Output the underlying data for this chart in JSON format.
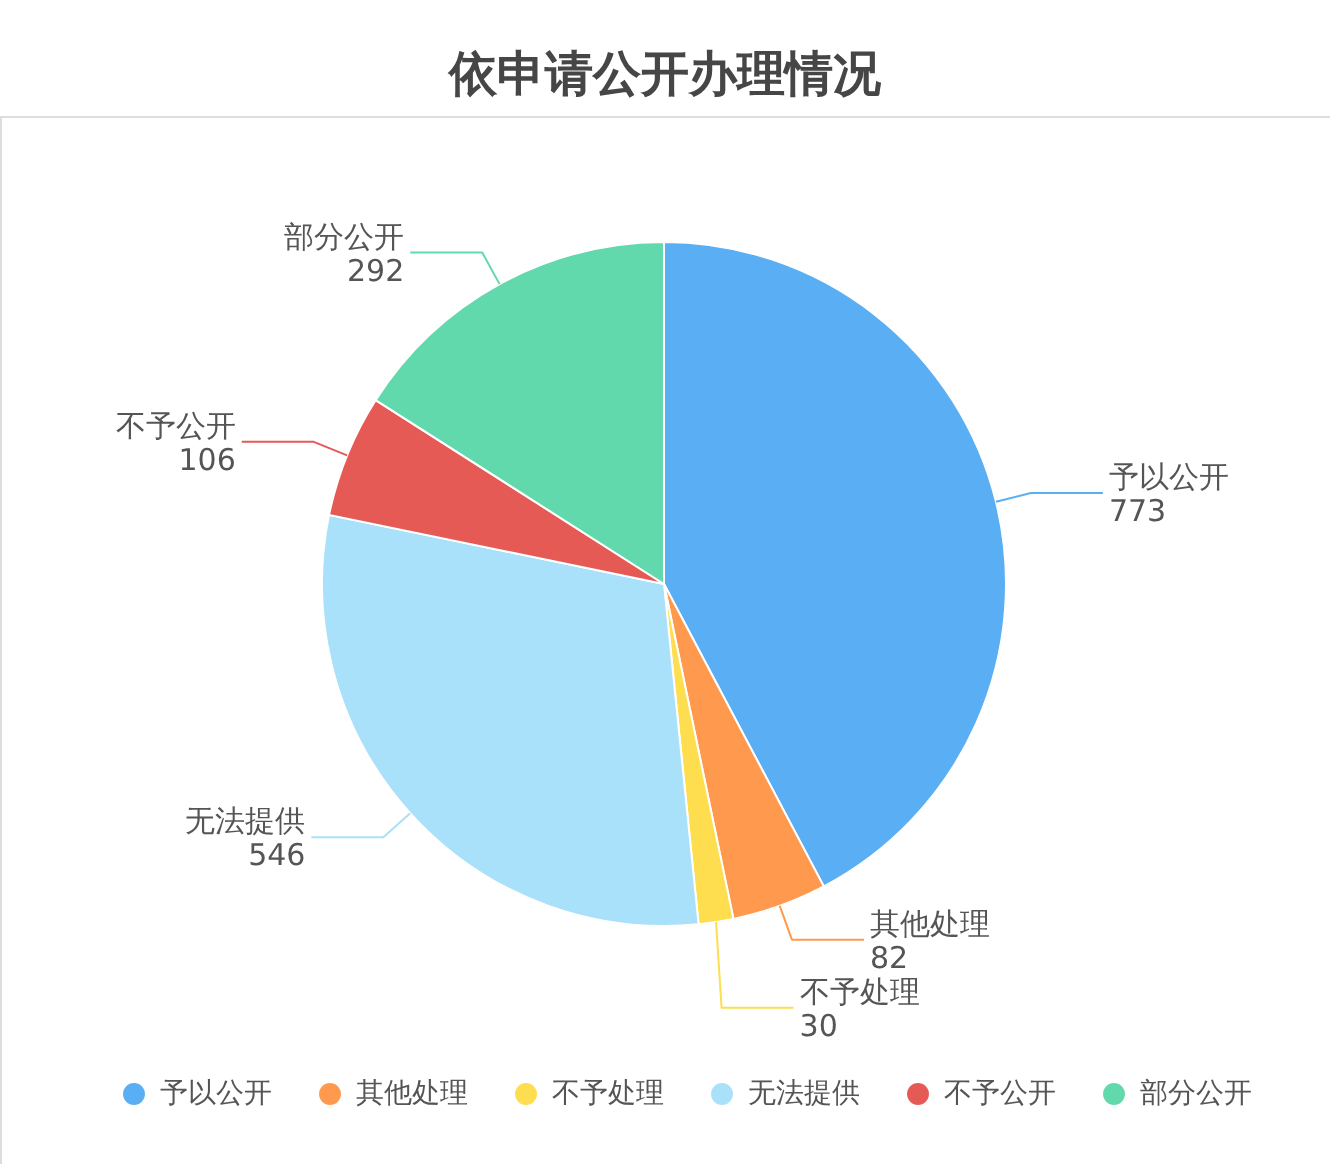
{
  "chart_data": {
    "type": "pie",
    "title": "依申请公开办理情况",
    "categories": [
      "予以公开",
      "其他处理",
      "不予处理",
      "无法提供",
      "不予公开",
      "部分公开"
    ],
    "values": [
      773,
      82,
      30,
      546,
      106,
      292
    ],
    "colors": [
      "#5aaef3",
      "#ff994d",
      "#fedd4e",
      "#a9e0fa",
      "#e65a56",
      "#62d9ad"
    ],
    "data_labels": true,
    "legend": "bottom"
  }
}
